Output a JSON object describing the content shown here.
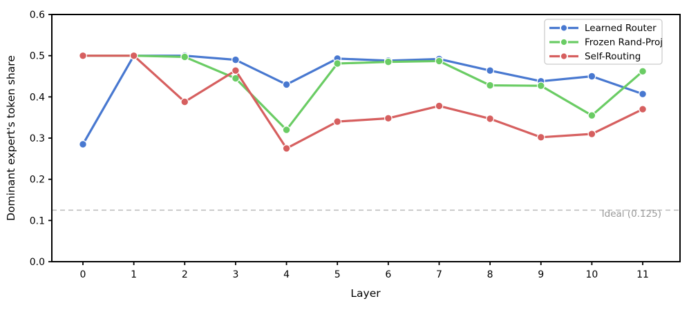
{
  "figure": {
    "background": "#ffffff",
    "frame_color": "#000000"
  },
  "chart_data": {
    "type": "line",
    "title": "",
    "xlabel": "Layer",
    "ylabel": "Dominant expert's token share",
    "x": [
      0,
      1,
      2,
      3,
      4,
      5,
      6,
      7,
      8,
      9,
      10,
      11
    ],
    "xlim": [
      -0.55,
      11.55
    ],
    "ylim": [
      0.0,
      0.6
    ],
    "yticks": [
      0.0,
      0.1,
      0.2,
      0.3,
      0.4,
      0.5,
      0.6
    ],
    "ytick_labels": [
      "0.0",
      "0.1",
      "0.2",
      "0.3",
      "0.4",
      "0.5",
      "0.6"
    ],
    "xtick_labels": [
      "0",
      "1",
      "2",
      "3",
      "4",
      "5",
      "6",
      "7",
      "8",
      "9",
      "10",
      "11"
    ],
    "grid": false,
    "legend_position": "upper right",
    "series": [
      {
        "name": "Learned Router",
        "color": "#4878d0",
        "values": [
          0.285,
          0.5,
          0.5,
          0.49,
          0.43,
          0.493,
          0.488,
          0.492,
          0.464,
          0.438,
          0.45,
          0.407
        ]
      },
      {
        "name": "Frozen Rand-Proj",
        "color": "#6acc64",
        "values": [
          0.5,
          0.5,
          0.497,
          0.445,
          0.32,
          0.481,
          0.485,
          0.487,
          0.428,
          0.427,
          0.355,
          0.462
        ]
      },
      {
        "name": "Self-Routing",
        "color": "#d65f5f",
        "values": [
          0.5,
          0.5,
          0.388,
          0.464,
          0.275,
          0.34,
          0.348,
          0.378,
          0.347,
          0.302,
          0.31,
          0.37
        ]
      }
    ],
    "reference_line": {
      "value": 0.125,
      "label": "Ideal (0.125)",
      "color": "#bbbbbb",
      "label_color": "#999999",
      "style": "dashed"
    }
  }
}
